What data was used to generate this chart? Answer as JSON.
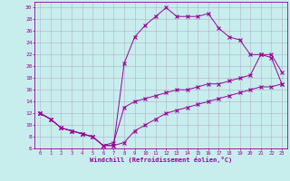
{
  "xlabel": "Windchill (Refroidissement éolien,°C)",
  "background_color": "#c8eded",
  "grid_color": "#b0b0cc",
  "line_color": "#990099",
  "xlim": [
    -0.5,
    23.5
  ],
  "ylim": [
    6,
    31
  ],
  "xticks": [
    0,
    1,
    2,
    3,
    4,
    5,
    6,
    7,
    8,
    9,
    10,
    11,
    12,
    13,
    14,
    15,
    16,
    17,
    18,
    19,
    20,
    21,
    22,
    23
  ],
  "yticks": [
    6,
    8,
    10,
    12,
    14,
    16,
    18,
    20,
    22,
    24,
    26,
    28,
    30
  ],
  "line1_x": [
    0,
    1,
    2,
    3,
    4,
    5,
    6,
    7,
    8,
    9,
    10,
    11,
    12,
    13,
    14,
    15,
    16,
    17,
    18,
    19,
    20,
    21,
    22,
    23
  ],
  "line1_y": [
    12,
    11,
    9.5,
    9,
    8.5,
    8,
    6.5,
    6.5,
    7,
    9,
    10,
    11,
    12,
    12.5,
    13,
    13.5,
    14,
    14.5,
    15,
    15.5,
    16,
    16.5,
    16.5,
    17
  ],
  "line2_x": [
    0,
    1,
    2,
    3,
    4,
    5,
    6,
    7,
    8,
    9,
    10,
    11,
    12,
    13,
    14,
    15,
    16,
    17,
    18,
    19,
    20,
    21,
    22,
    23
  ],
  "line2_y": [
    12,
    11,
    9.5,
    9,
    8.5,
    8,
    6.5,
    7,
    13,
    14,
    14.5,
    15,
    15.5,
    16,
    16,
    16.5,
    17,
    17,
    17.5,
    18,
    18.5,
    22,
    22,
    19
  ],
  "line3_x": [
    0,
    1,
    2,
    3,
    4,
    5,
    6,
    7,
    8,
    9,
    10,
    11,
    12,
    13,
    14,
    15,
    16,
    17,
    18,
    19,
    20,
    21,
    22,
    23
  ],
  "line3_y": [
    12,
    11,
    9.5,
    9,
    8.5,
    8,
    6.5,
    6.5,
    20.5,
    25,
    27,
    28.5,
    30,
    28.5,
    28.5,
    28.5,
    29,
    26.5,
    25,
    24.5,
    22,
    22,
    21.5,
    17
  ]
}
